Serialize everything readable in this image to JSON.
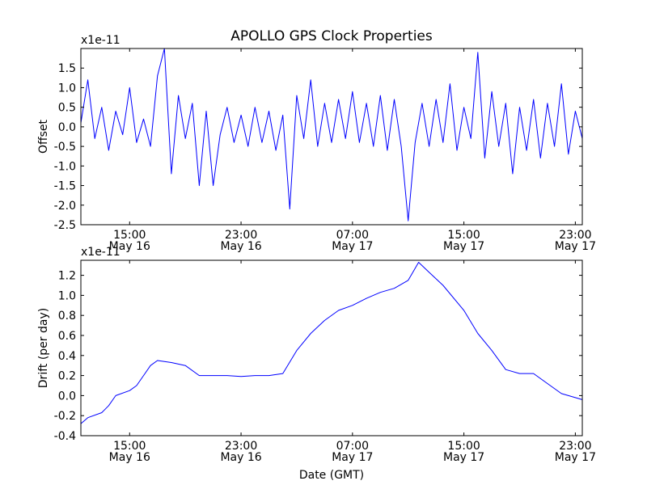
{
  "figure": {
    "title": "APOLLO GPS Clock Properties",
    "xlabel": "Date (GMT)"
  },
  "chart_data": [
    {
      "type": "line",
      "ylabel": "Offset",
      "y_multiplier_label": "x1e-11",
      "xlim": [
        "2012-05-16 11:30",
        "2012-05-17 23:30"
      ],
      "ylim": [
        -2.5,
        2.0
      ],
      "yticks": [
        -2.5,
        -2.0,
        -1.5,
        -1.0,
        -0.5,
        0.0,
        0.5,
        1.0,
        1.5
      ],
      "ytick_labels": [
        "-2.5",
        "-2.0",
        "-1.5",
        "-1.0",
        "-0.5",
        "0.0",
        "0.5",
        "1.0",
        "1.5"
      ],
      "xticks": [
        {
          "time": "2012-05-16 15:00",
          "line1": "15:00",
          "line2": "May 16"
        },
        {
          "time": "2012-05-16 23:00",
          "line1": "23:00",
          "line2": "May 16"
        },
        {
          "time": "2012-05-17 07:00",
          "line1": "07:00",
          "line2": "May 17"
        },
        {
          "time": "2012-05-17 15:00",
          "line1": "15:00",
          "line2": "May 17"
        },
        {
          "time": "2012-05-17 23:00",
          "line1": "23:00",
          "line2": "May 17"
        }
      ],
      "grid": false,
      "color": "#0000ff",
      "series": [
        {
          "x": [
            "2012-05-16 11:30",
            "2012-05-16 12:00",
            "2012-05-16 12:30",
            "2012-05-16 13:00",
            "2012-05-16 13:30",
            "2012-05-16 14:00",
            "2012-05-16 14:30",
            "2012-05-16 15:00",
            "2012-05-16 15:30",
            "2012-05-16 16:00",
            "2012-05-16 16:30",
            "2012-05-16 17:00",
            "2012-05-16 17:30",
            "2012-05-16 18:00",
            "2012-05-16 18:30",
            "2012-05-16 19:00",
            "2012-05-16 19:30",
            "2012-05-16 20:00",
            "2012-05-16 20:30",
            "2012-05-16 21:00",
            "2012-05-16 21:30",
            "2012-05-16 22:00",
            "2012-05-16 22:30",
            "2012-05-16 23:00",
            "2012-05-16 23:30",
            "2012-05-17 00:00",
            "2012-05-17 00:30",
            "2012-05-17 01:00",
            "2012-05-17 01:30",
            "2012-05-17 02:00",
            "2012-05-17 02:30",
            "2012-05-17 03:00",
            "2012-05-17 03:30",
            "2012-05-17 04:00",
            "2012-05-17 04:30",
            "2012-05-17 05:00",
            "2012-05-17 05:30",
            "2012-05-17 06:00",
            "2012-05-17 06:30",
            "2012-05-17 07:00",
            "2012-05-17 07:30",
            "2012-05-17 08:00",
            "2012-05-17 08:30",
            "2012-05-17 09:00",
            "2012-05-17 09:30",
            "2012-05-17 10:00",
            "2012-05-17 10:30",
            "2012-05-17 11:00",
            "2012-05-17 11:30",
            "2012-05-17 12:00",
            "2012-05-17 12:30",
            "2012-05-17 13:00",
            "2012-05-17 13:30",
            "2012-05-17 14:00",
            "2012-05-17 14:30",
            "2012-05-17 15:00",
            "2012-05-17 15:30",
            "2012-05-17 16:00",
            "2012-05-17 16:30",
            "2012-05-17 17:00",
            "2012-05-17 17:30",
            "2012-05-17 18:00",
            "2012-05-17 18:30",
            "2012-05-17 19:00",
            "2012-05-17 19:30",
            "2012-05-17 20:00",
            "2012-05-17 20:30",
            "2012-05-17 21:00",
            "2012-05-17 21:30",
            "2012-05-17 22:00",
            "2012-05-17 22:30",
            "2012-05-17 23:00",
            "2012-05-17 23:30"
          ],
          "y": [
            0.1,
            1.2,
            -0.3,
            0.5,
            -0.6,
            0.4,
            -0.2,
            1.0,
            -0.4,
            0.2,
            -0.5,
            1.3,
            2.0,
            -1.2,
            0.8,
            -0.3,
            0.6,
            -1.5,
            0.4,
            -1.5,
            -0.2,
            0.5,
            -0.4,
            0.3,
            -0.5,
            0.5,
            -0.4,
            0.4,
            -0.6,
            0.3,
            -2.1,
            0.8,
            -0.3,
            1.2,
            -0.5,
            0.6,
            -0.4,
            0.7,
            -0.3,
            0.9,
            -0.4,
            0.6,
            -0.5,
            0.8,
            -0.6,
            0.7,
            -0.5,
            -2.4,
            -0.4,
            0.6,
            -0.5,
            0.7,
            -0.4,
            1.1,
            -0.6,
            0.5,
            -0.3,
            1.9,
            -0.8,
            0.9,
            -0.5,
            0.6,
            -1.2,
            0.5,
            -0.6,
            0.7,
            -0.8,
            0.6,
            -0.5,
            1.1,
            -0.7,
            0.4,
            -0.3
          ]
        }
      ]
    },
    {
      "type": "line",
      "ylabel": "Drift (per day)",
      "y_multiplier_label": "x1e-11",
      "xlim": [
        "2012-05-16 11:30",
        "2012-05-17 23:30"
      ],
      "ylim": [
        -0.4,
        1.35
      ],
      "yticks": [
        -0.4,
        -0.2,
        0.0,
        0.2,
        0.4,
        0.6,
        0.8,
        1.0,
        1.2
      ],
      "ytick_labels": [
        "-0.4",
        "-0.2",
        "0.0",
        "0.2",
        "0.4",
        "0.6",
        "0.8",
        "1.0",
        "1.2"
      ],
      "xticks": [
        {
          "time": "2012-05-16 15:00",
          "line1": "15:00",
          "line2": "May 16"
        },
        {
          "time": "2012-05-16 23:00",
          "line1": "23:00",
          "line2": "May 16"
        },
        {
          "time": "2012-05-17 07:00",
          "line1": "07:00",
          "line2": "May 17"
        },
        {
          "time": "2012-05-17 15:00",
          "line1": "15:00",
          "line2": "May 17"
        },
        {
          "time": "2012-05-17 23:00",
          "line1": "23:00",
          "line2": "May 17"
        }
      ],
      "grid": false,
      "color": "#0000ff",
      "series": [
        {
          "x": [
            "2012-05-16 11:30",
            "2012-05-16 12:00",
            "2012-05-16 13:00",
            "2012-05-16 13:30",
            "2012-05-16 14:00",
            "2012-05-16 15:00",
            "2012-05-16 15:30",
            "2012-05-16 16:00",
            "2012-05-16 16:30",
            "2012-05-16 17:00",
            "2012-05-16 18:00",
            "2012-05-16 19:00",
            "2012-05-16 20:00",
            "2012-05-16 21:00",
            "2012-05-16 22:00",
            "2012-05-16 23:00",
            "2012-05-17 00:00",
            "2012-05-17 01:00",
            "2012-05-17 02:00",
            "2012-05-17 03:00",
            "2012-05-17 04:00",
            "2012-05-17 05:00",
            "2012-05-17 06:00",
            "2012-05-17 07:00",
            "2012-05-17 08:00",
            "2012-05-17 09:00",
            "2012-05-17 10:00",
            "2012-05-17 11:00",
            "2012-05-17 11:45",
            "2012-05-17 12:30",
            "2012-05-17 13:30",
            "2012-05-17 15:00",
            "2012-05-17 16:00",
            "2012-05-17 17:00",
            "2012-05-17 18:00",
            "2012-05-17 19:00",
            "2012-05-17 20:00",
            "2012-05-17 21:00",
            "2012-05-17 22:00",
            "2012-05-17 23:00",
            "2012-05-17 23:30"
          ],
          "y": [
            -0.28,
            -0.22,
            -0.17,
            -0.1,
            0.0,
            0.05,
            0.1,
            0.2,
            0.3,
            0.35,
            0.33,
            0.3,
            0.2,
            0.2,
            0.2,
            0.19,
            0.2,
            0.2,
            0.22,
            0.45,
            0.62,
            0.75,
            0.85,
            0.9,
            0.97,
            1.03,
            1.07,
            1.15,
            1.33,
            1.23,
            1.1,
            0.85,
            0.62,
            0.45,
            0.26,
            0.22,
            0.22,
            0.12,
            0.02,
            -0.02,
            -0.04
          ]
        }
      ]
    }
  ]
}
